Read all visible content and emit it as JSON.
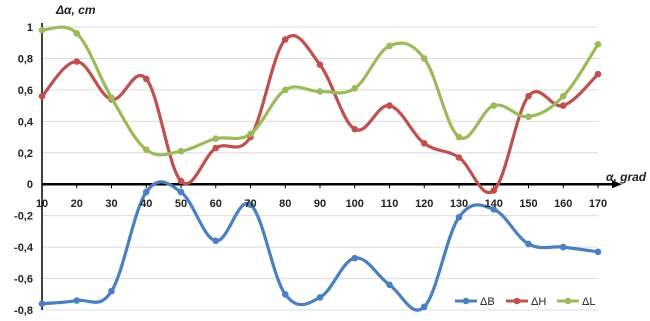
{
  "chart_data": {
    "type": "line",
    "title": "",
    "xlabel": "α, grad",
    "ylabel": "Δα, cm",
    "xlim": [
      10,
      170
    ],
    "ylim": [
      -0.8,
      1.0
    ],
    "x_ticks": [
      10,
      20,
      30,
      40,
      50,
      60,
      70,
      80,
      90,
      100,
      110,
      120,
      130,
      140,
      150,
      160,
      170
    ],
    "y_ticks": [
      {
        "value": 1.0,
        "label": "1"
      },
      {
        "value": 0.8,
        "label": "0,8"
      },
      {
        "value": 0.6,
        "label": "0,6"
      },
      {
        "value": 0.4,
        "label": "0,4"
      },
      {
        "value": 0.2,
        "label": "0,2"
      },
      {
        "value": 0.0,
        "label": "0"
      },
      {
        "value": -0.2,
        "label": "-0,2"
      },
      {
        "value": -0.4,
        "label": "-0,4"
      },
      {
        "value": -0.6,
        "label": "-0,6"
      },
      {
        "value": -0.8,
        "label": "-0,8"
      }
    ],
    "grid": "horizontal",
    "legend_position": "bottom-right",
    "x": [
      10,
      20,
      30,
      40,
      50,
      60,
      70,
      80,
      90,
      100,
      110,
      120,
      130,
      140,
      150,
      160,
      170
    ],
    "series": [
      {
        "name": "ΔB",
        "color": "#4a7fc1",
        "values": [
          -0.76,
          -0.74,
          -0.68,
          -0.05,
          -0.05,
          -0.36,
          -0.13,
          -0.7,
          -0.72,
          -0.47,
          -0.64,
          -0.78,
          -0.21,
          -0.16,
          -0.38,
          -0.4,
          -0.43
        ]
      },
      {
        "name": "ΔH",
        "color": "#c0504d",
        "values": [
          0.56,
          0.78,
          0.54,
          0.67,
          0.02,
          0.23,
          0.3,
          0.92,
          0.76,
          0.35,
          0.5,
          0.26,
          0.17,
          -0.04,
          0.56,
          0.5,
          0.7
        ]
      },
      {
        "name": "ΔL",
        "color": "#9bbb59",
        "values": [
          0.98,
          0.96,
          0.55,
          0.22,
          0.21,
          0.29,
          0.32,
          0.6,
          0.59,
          0.61,
          0.88,
          0.8,
          0.3,
          0.5,
          0.43,
          0.56,
          0.89
        ]
      }
    ]
  }
}
